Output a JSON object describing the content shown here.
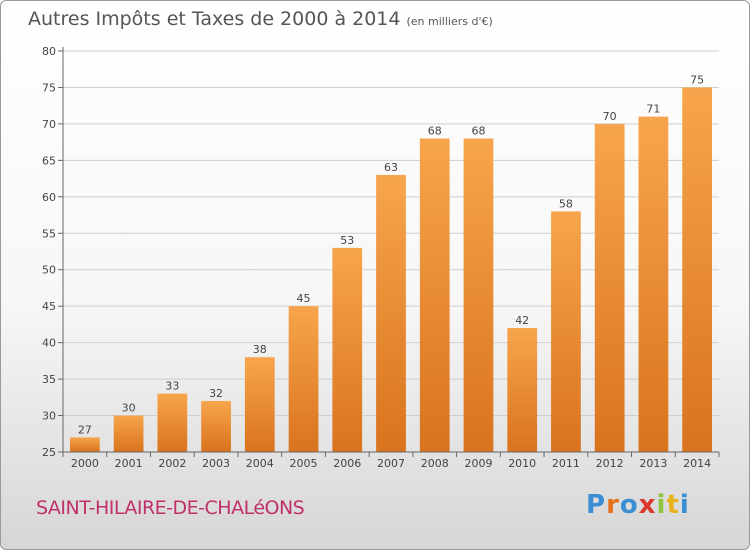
{
  "title": "Autres Impôts et Taxes de 2000 à 2014",
  "subtitle": "(en milliers d'€)",
  "city": "SAINT-HILAIRE-DE-CHALéONS",
  "logo": {
    "letters": [
      "P",
      "r",
      "o",
      "x",
      "i",
      "t",
      "i"
    ],
    "colors": [
      "#3a8fd4",
      "#e8721c",
      "#3a8fd4",
      "#d93a2b",
      "#8fc440",
      "#e8b21c",
      "#3a8fd4"
    ]
  },
  "colors": {
    "bar_light": "#f7a54c",
    "bar_dark": "#d9731d",
    "grid": "#cfcfcf",
    "axis": "#666666"
  },
  "chart_data": {
    "type": "bar",
    "categories": [
      "2000",
      "2001",
      "2002",
      "2003",
      "2004",
      "2005",
      "2006",
      "2007",
      "2008",
      "2009",
      "2010",
      "2011",
      "2012",
      "2013",
      "2014"
    ],
    "values": [
      27,
      30,
      33,
      32,
      38,
      45,
      53,
      63,
      68,
      68,
      42,
      58,
      70,
      71,
      75
    ],
    "ylim": [
      25,
      80
    ],
    "yticks": [
      25,
      30,
      35,
      40,
      45,
      50,
      55,
      60,
      65,
      70,
      75,
      80
    ],
    "grid": true,
    "xlabel": "",
    "ylabel": ""
  }
}
